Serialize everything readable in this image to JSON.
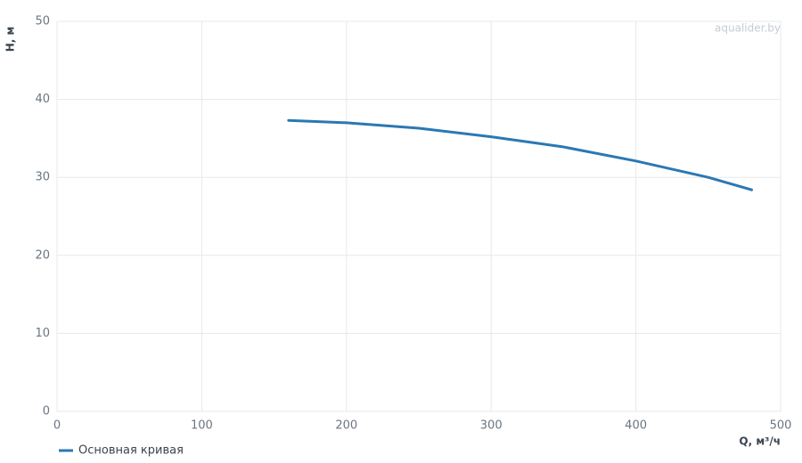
{
  "chart_data": {
    "type": "line",
    "x_label": "Q, м³/ч",
    "y_label": "H, м",
    "watermark": "aqualider.by",
    "x": [
      160,
      200,
      250,
      300,
      350,
      400,
      450,
      480
    ],
    "series": [
      {
        "name": "Основная кривая",
        "color": "#2b78b4",
        "values": [
          37.3,
          37.0,
          36.3,
          35.2,
          33.9,
          32.1,
          30.0,
          28.4
        ]
      }
    ],
    "xlim": [
      0,
      500
    ],
    "xticks": [
      0,
      100,
      200,
      300,
      400,
      500
    ],
    "ylim": [
      0,
      50
    ],
    "yticks": [
      0,
      10,
      20,
      30,
      40,
      50
    ],
    "grid": true
  }
}
